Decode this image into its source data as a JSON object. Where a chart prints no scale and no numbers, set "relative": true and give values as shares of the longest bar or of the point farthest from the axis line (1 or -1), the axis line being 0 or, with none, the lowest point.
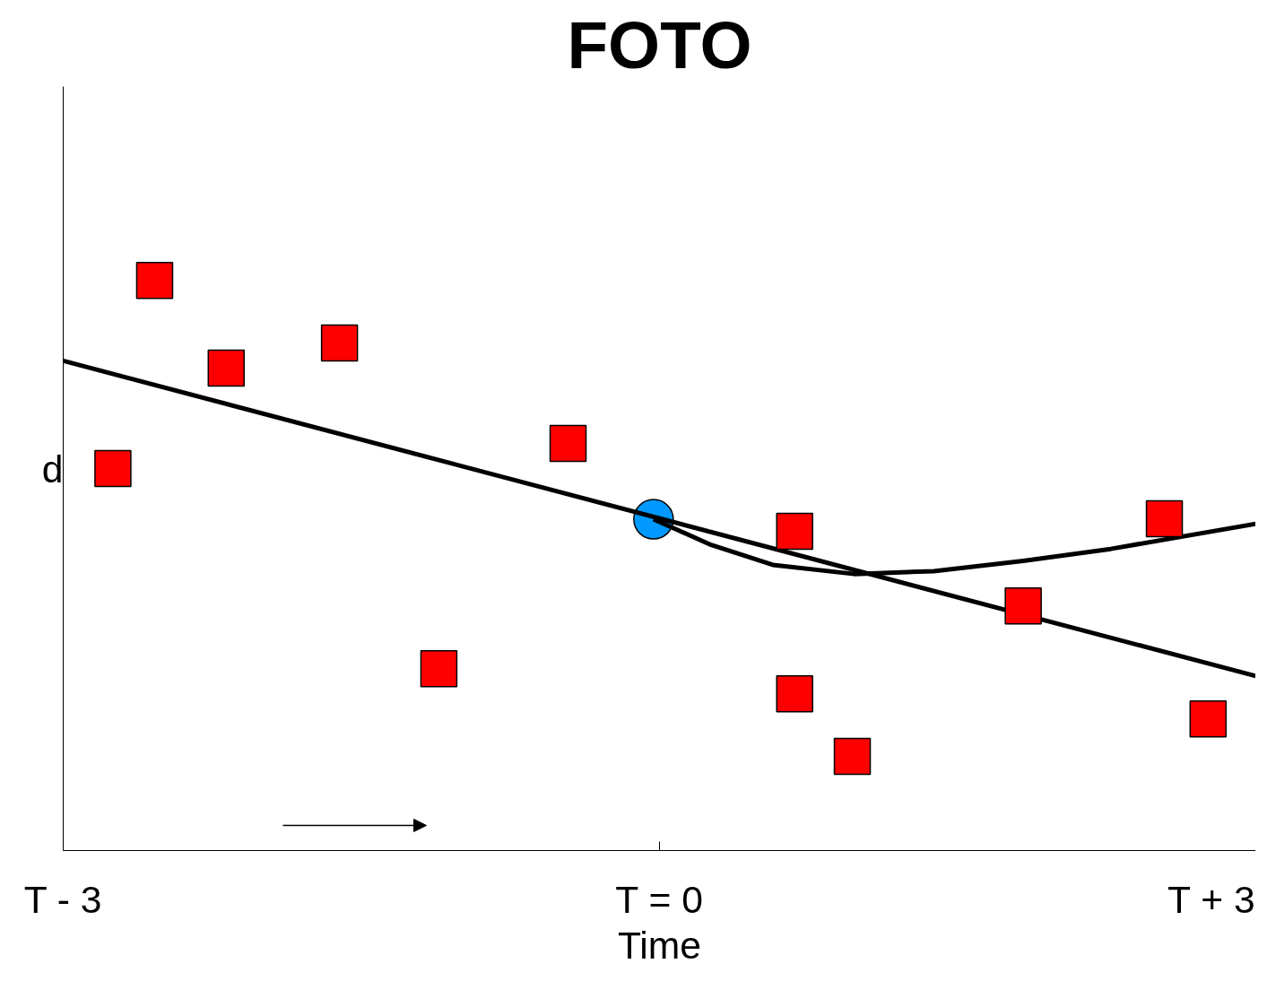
{
  "chart_data": {
    "type": "scatter",
    "title": "FOTO",
    "xlabel": "Time",
    "ylabel": "d",
    "relative": true,
    "xlim": [
      -3,
      3
    ],
    "xticks": [
      {
        "value": -3,
        "label": "T - 3"
      },
      {
        "value": 0,
        "label": "T = 0"
      },
      {
        "value": 3,
        "label": "T + 3"
      }
    ],
    "tick_labels": "x",
    "series": [
      {
        "color": "#0099ff",
        "marker": "circle",
        "x": [
          -0.03
        ],
        "values": [
          0.581
        ]
      },
      {
        "type": "line",
        "color": "#000000",
        "line_style": "solid",
        "x": [
          -3,
          3
        ],
        "values": [
          0.859,
          0.306
        ]
      },
      {
        "type": "line",
        "color": "#000000",
        "line_style": "solid",
        "x": [
          -0.03,
          0.26,
          0.57,
          0.98,
          1.38,
          1.83,
          2.27,
          3
        ],
        "values": [
          0.581,
          0.536,
          0.501,
          0.485,
          0.49,
          0.508,
          0.529,
          0.573
        ]
      },
      {
        "color": "#ff0000",
        "marker": "square",
        "x": [
          -2.75,
          -2.54,
          -2.18,
          -1.61,
          -1.11,
          -0.46,
          0.68,
          0.68,
          0.97,
          1.83,
          2.54,
          2.76
        ],
        "values": [
          0.67,
          1,
          0.846,
          0.89,
          0.319,
          0.714,
          0.56,
          0.275,
          0.165,
          0.429,
          0.582,
          0.231
        ]
      }
    ]
  }
}
